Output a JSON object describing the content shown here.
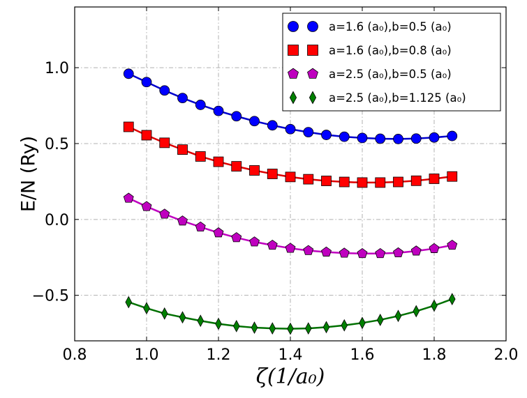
{
  "chart_data": {
    "type": "line",
    "title": "",
    "xlabel": "ζ(1/a₀)",
    "ylabel": "E/N (Ry)",
    "xlim": [
      0.8,
      2.0
    ],
    "ylim": [
      -0.8,
      1.4
    ],
    "grid": true,
    "legend_position": "top-right",
    "xticks": [
      0.8,
      1.0,
      1.2,
      1.4,
      1.6,
      1.8,
      2.0
    ],
    "xtick_labels": [
      "0.8",
      "1.0",
      "1.2",
      "1.4",
      "1.6",
      "1.8",
      "2.0"
    ],
    "yticks": [
      -0.5,
      0.0,
      0.5,
      1.0
    ],
    "ytick_labels": [
      "−0.5",
      "0.0",
      "0.5",
      "1.0"
    ],
    "x": [
      0.95,
      1.0,
      1.05,
      1.1,
      1.15,
      1.2,
      1.25,
      1.3,
      1.35,
      1.4,
      1.45,
      1.5,
      1.55,
      1.6,
      1.65,
      1.7,
      1.75,
      1.8,
      1.85
    ],
    "series": [
      {
        "name": "a=1.6 (a₀),b=0.5 (a₀)",
        "marker": "circle",
        "color": "#0000ff",
        "line_color": "#0000cc",
        "values": [
          0.96,
          0.905,
          0.85,
          0.8,
          0.755,
          0.715,
          0.68,
          0.648,
          0.62,
          0.595,
          0.575,
          0.557,
          0.545,
          0.537,
          0.532,
          0.53,
          0.533,
          0.54,
          0.55
        ]
      },
      {
        "name": "a=1.6 (a₀),b=0.8 (a₀)",
        "marker": "square",
        "color": "#ff0000",
        "line_color": "#dd0000",
        "values": [
          0.61,
          0.555,
          0.505,
          0.46,
          0.415,
          0.38,
          0.35,
          0.323,
          0.3,
          0.28,
          0.265,
          0.254,
          0.247,
          0.243,
          0.243,
          0.247,
          0.255,
          0.268,
          0.283
        ]
      },
      {
        "name": "a=2.5 (a₀),b=0.5 (a₀)",
        "marker": "pentagon",
        "color": "#bf00bf",
        "line_color": "#bf00bf",
        "values": [
          0.14,
          0.085,
          0.035,
          -0.01,
          -0.05,
          -0.088,
          -0.12,
          -0.148,
          -0.17,
          -0.19,
          -0.205,
          -0.215,
          -0.222,
          -0.225,
          -0.225,
          -0.22,
          -0.208,
          -0.192,
          -0.17
        ]
      },
      {
        "name": "a=2.5 (a₀),b=1.125 (a₀)",
        "marker": "diamond",
        "color": "#008000",
        "line_color": "#007000",
        "values": [
          -0.545,
          -0.585,
          -0.62,
          -0.645,
          -0.668,
          -0.688,
          -0.703,
          -0.713,
          -0.718,
          -0.72,
          -0.718,
          -0.71,
          -0.698,
          -0.682,
          -0.662,
          -0.636,
          -0.605,
          -0.568,
          -0.525
        ]
      }
    ]
  }
}
